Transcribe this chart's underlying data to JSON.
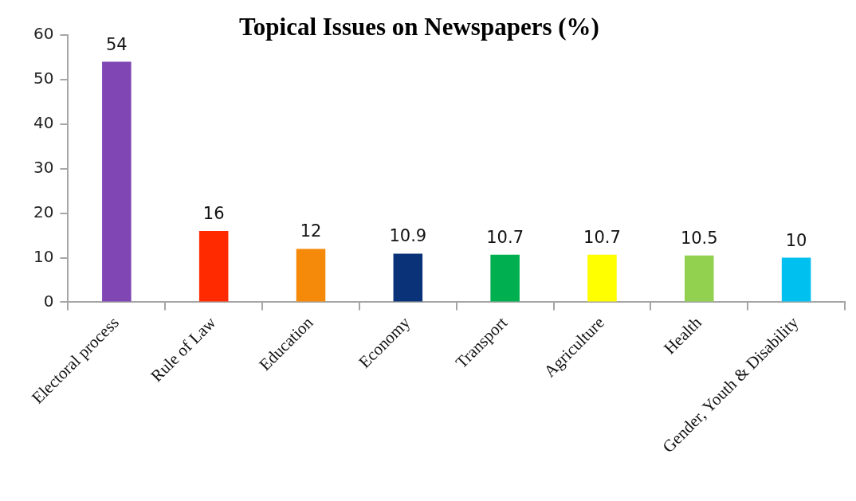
{
  "chart_data": {
    "type": "bar",
    "title": "Topical Issues on Newspapers (%)",
    "categories": [
      "Electoral process",
      "Rule of Law",
      "Education",
      "Economy",
      "Transport",
      "Agriculture",
      "Health",
      "Gender, Youth & Disability"
    ],
    "values": [
      54,
      16,
      12,
      10.9,
      10.7,
      10.7,
      10.5,
      10
    ],
    "colors": [
      "#8046b4",
      "#ff2a00",
      "#f58a0a",
      "#0a3278",
      "#00b050",
      "#ffff00",
      "#92d050",
      "#00c0f0"
    ],
    "ylim": [
      0,
      60
    ],
    "yticks": [
      0,
      10,
      20,
      30,
      40,
      50,
      60
    ],
    "data_labels": true,
    "grid": false,
    "legend": false
  }
}
